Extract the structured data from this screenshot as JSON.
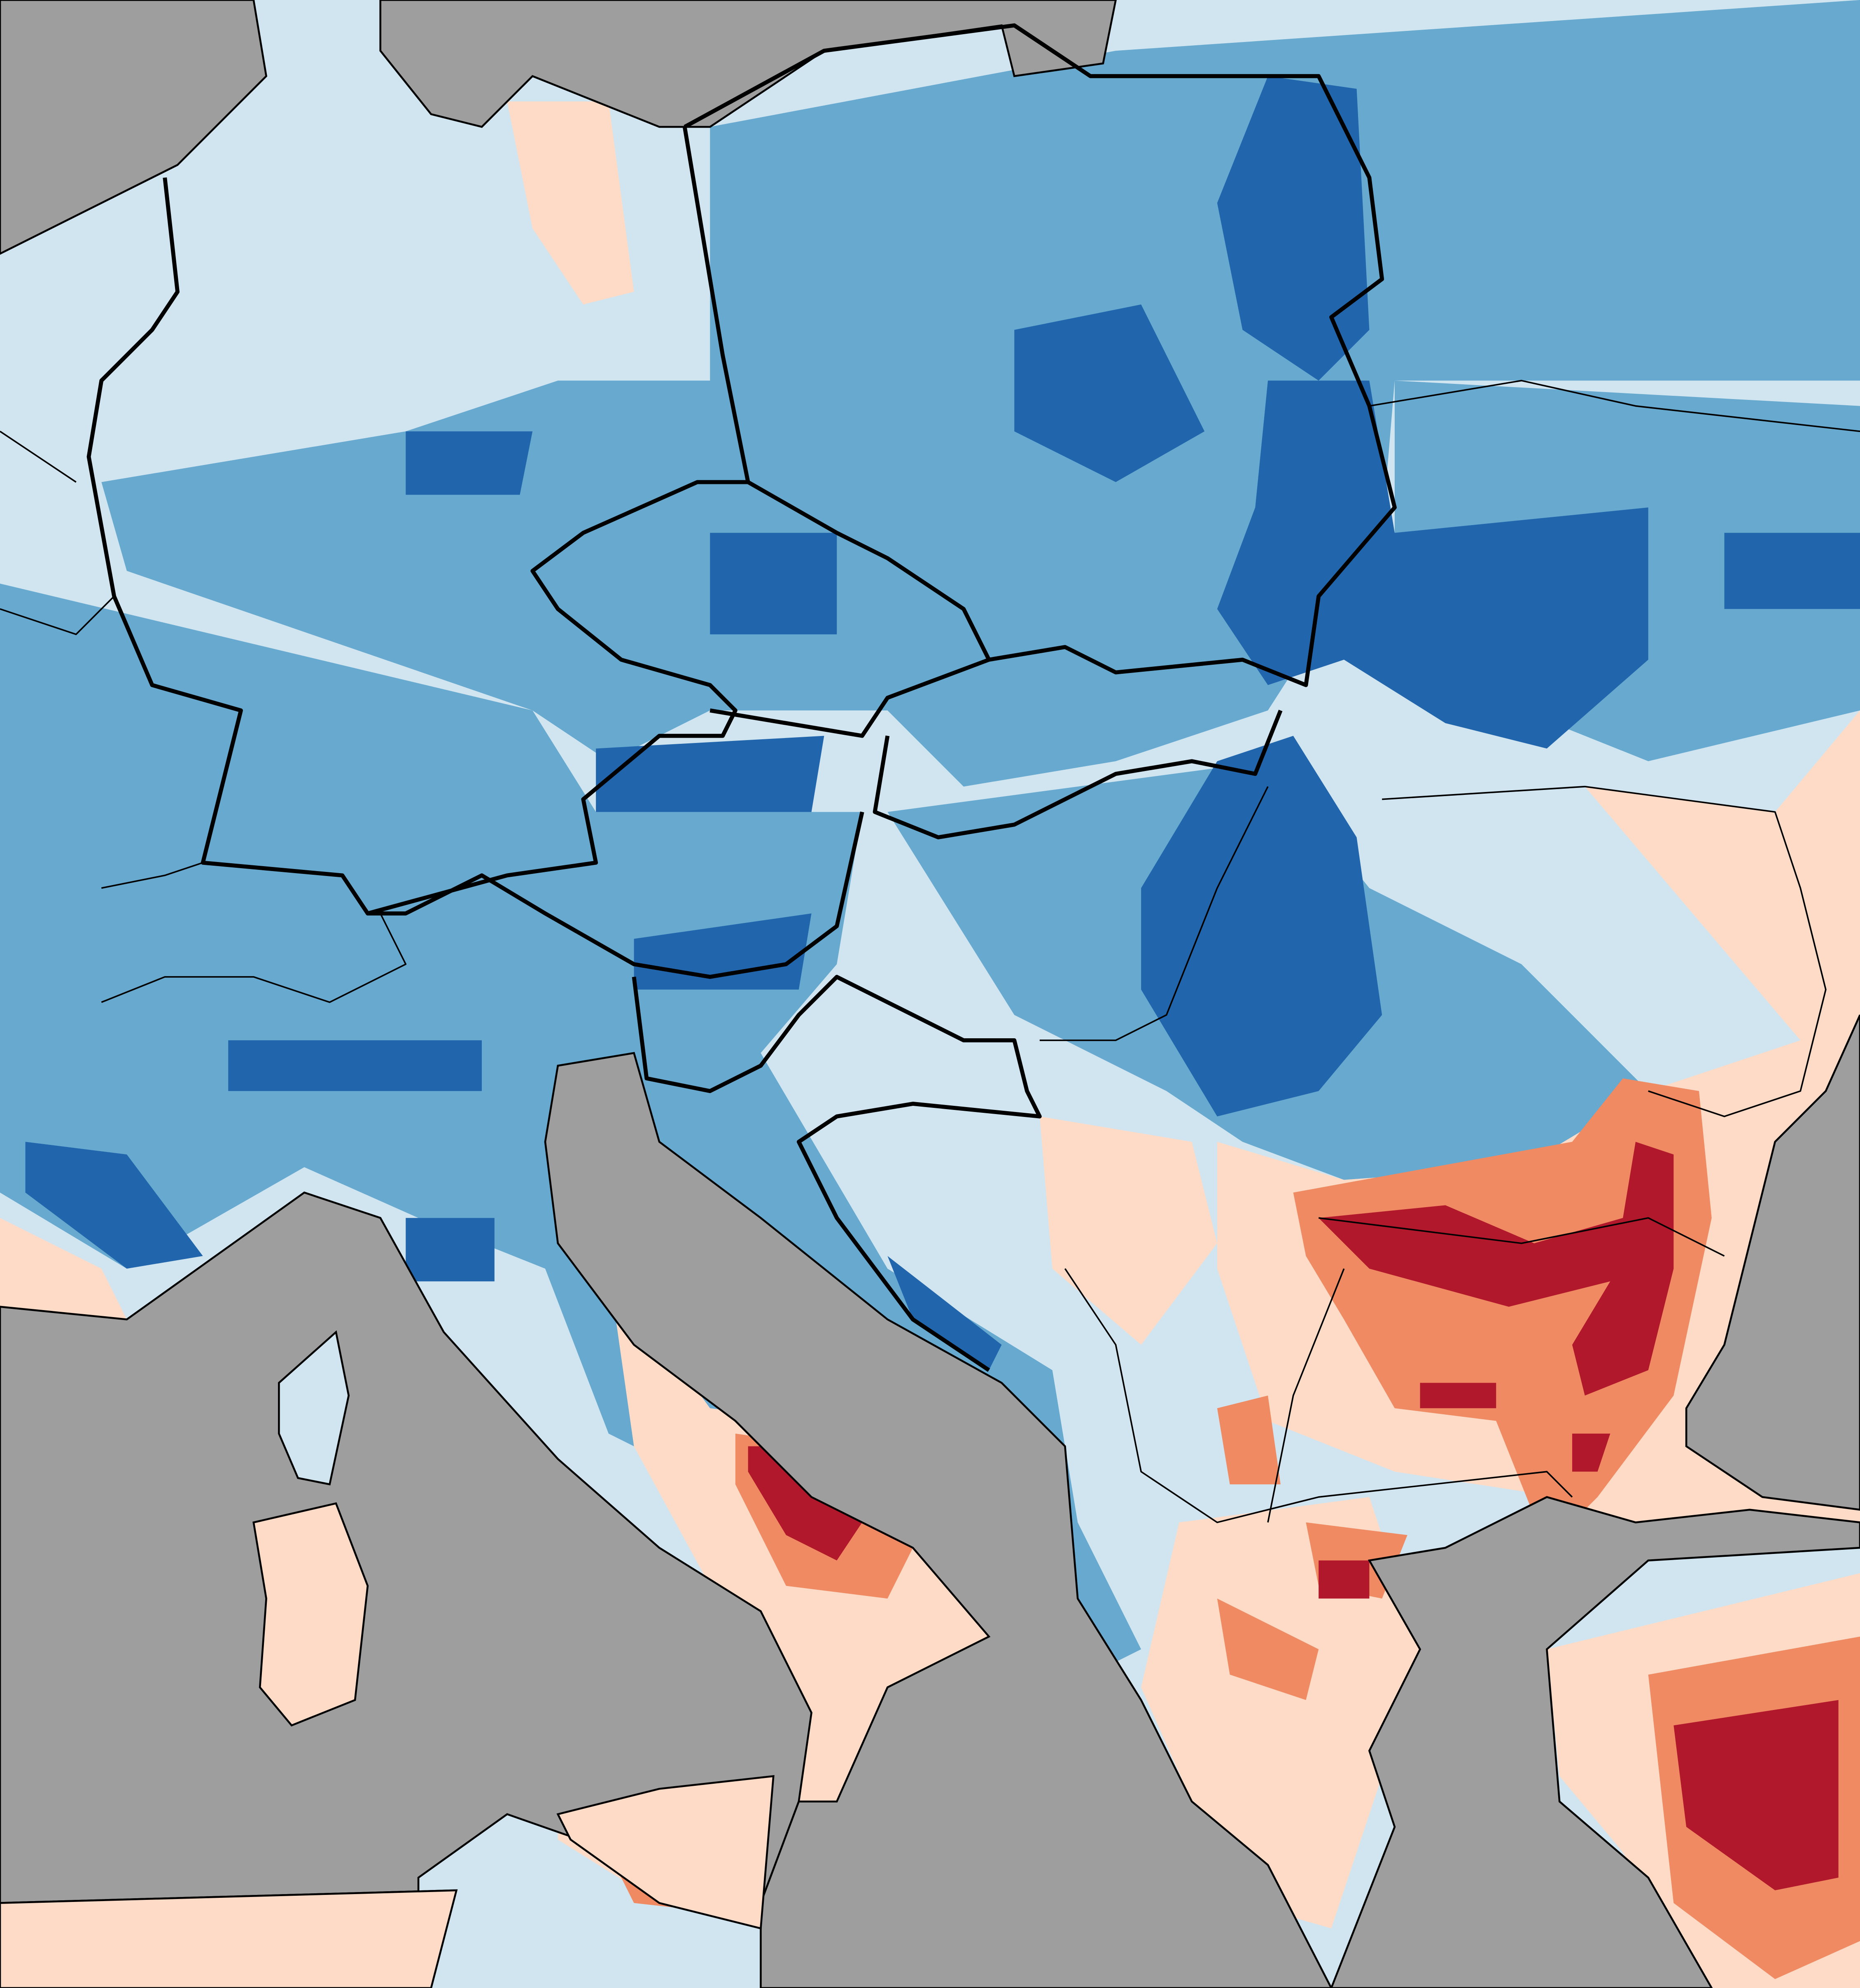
{
  "map": {
    "colors": {
      "sea": "#9e9e9e",
      "very_wet_dark_blue": "#2166ac",
      "wet_medium_blue": "#67a9cf",
      "slightly_wet_light_blue": "#d1e5f0",
      "slightly_dry_peach": "#fddbc7",
      "dry_salmon": "#ef8a62",
      "very_dry_red": "#b2182b",
      "border": "#000000"
    }
  }
}
